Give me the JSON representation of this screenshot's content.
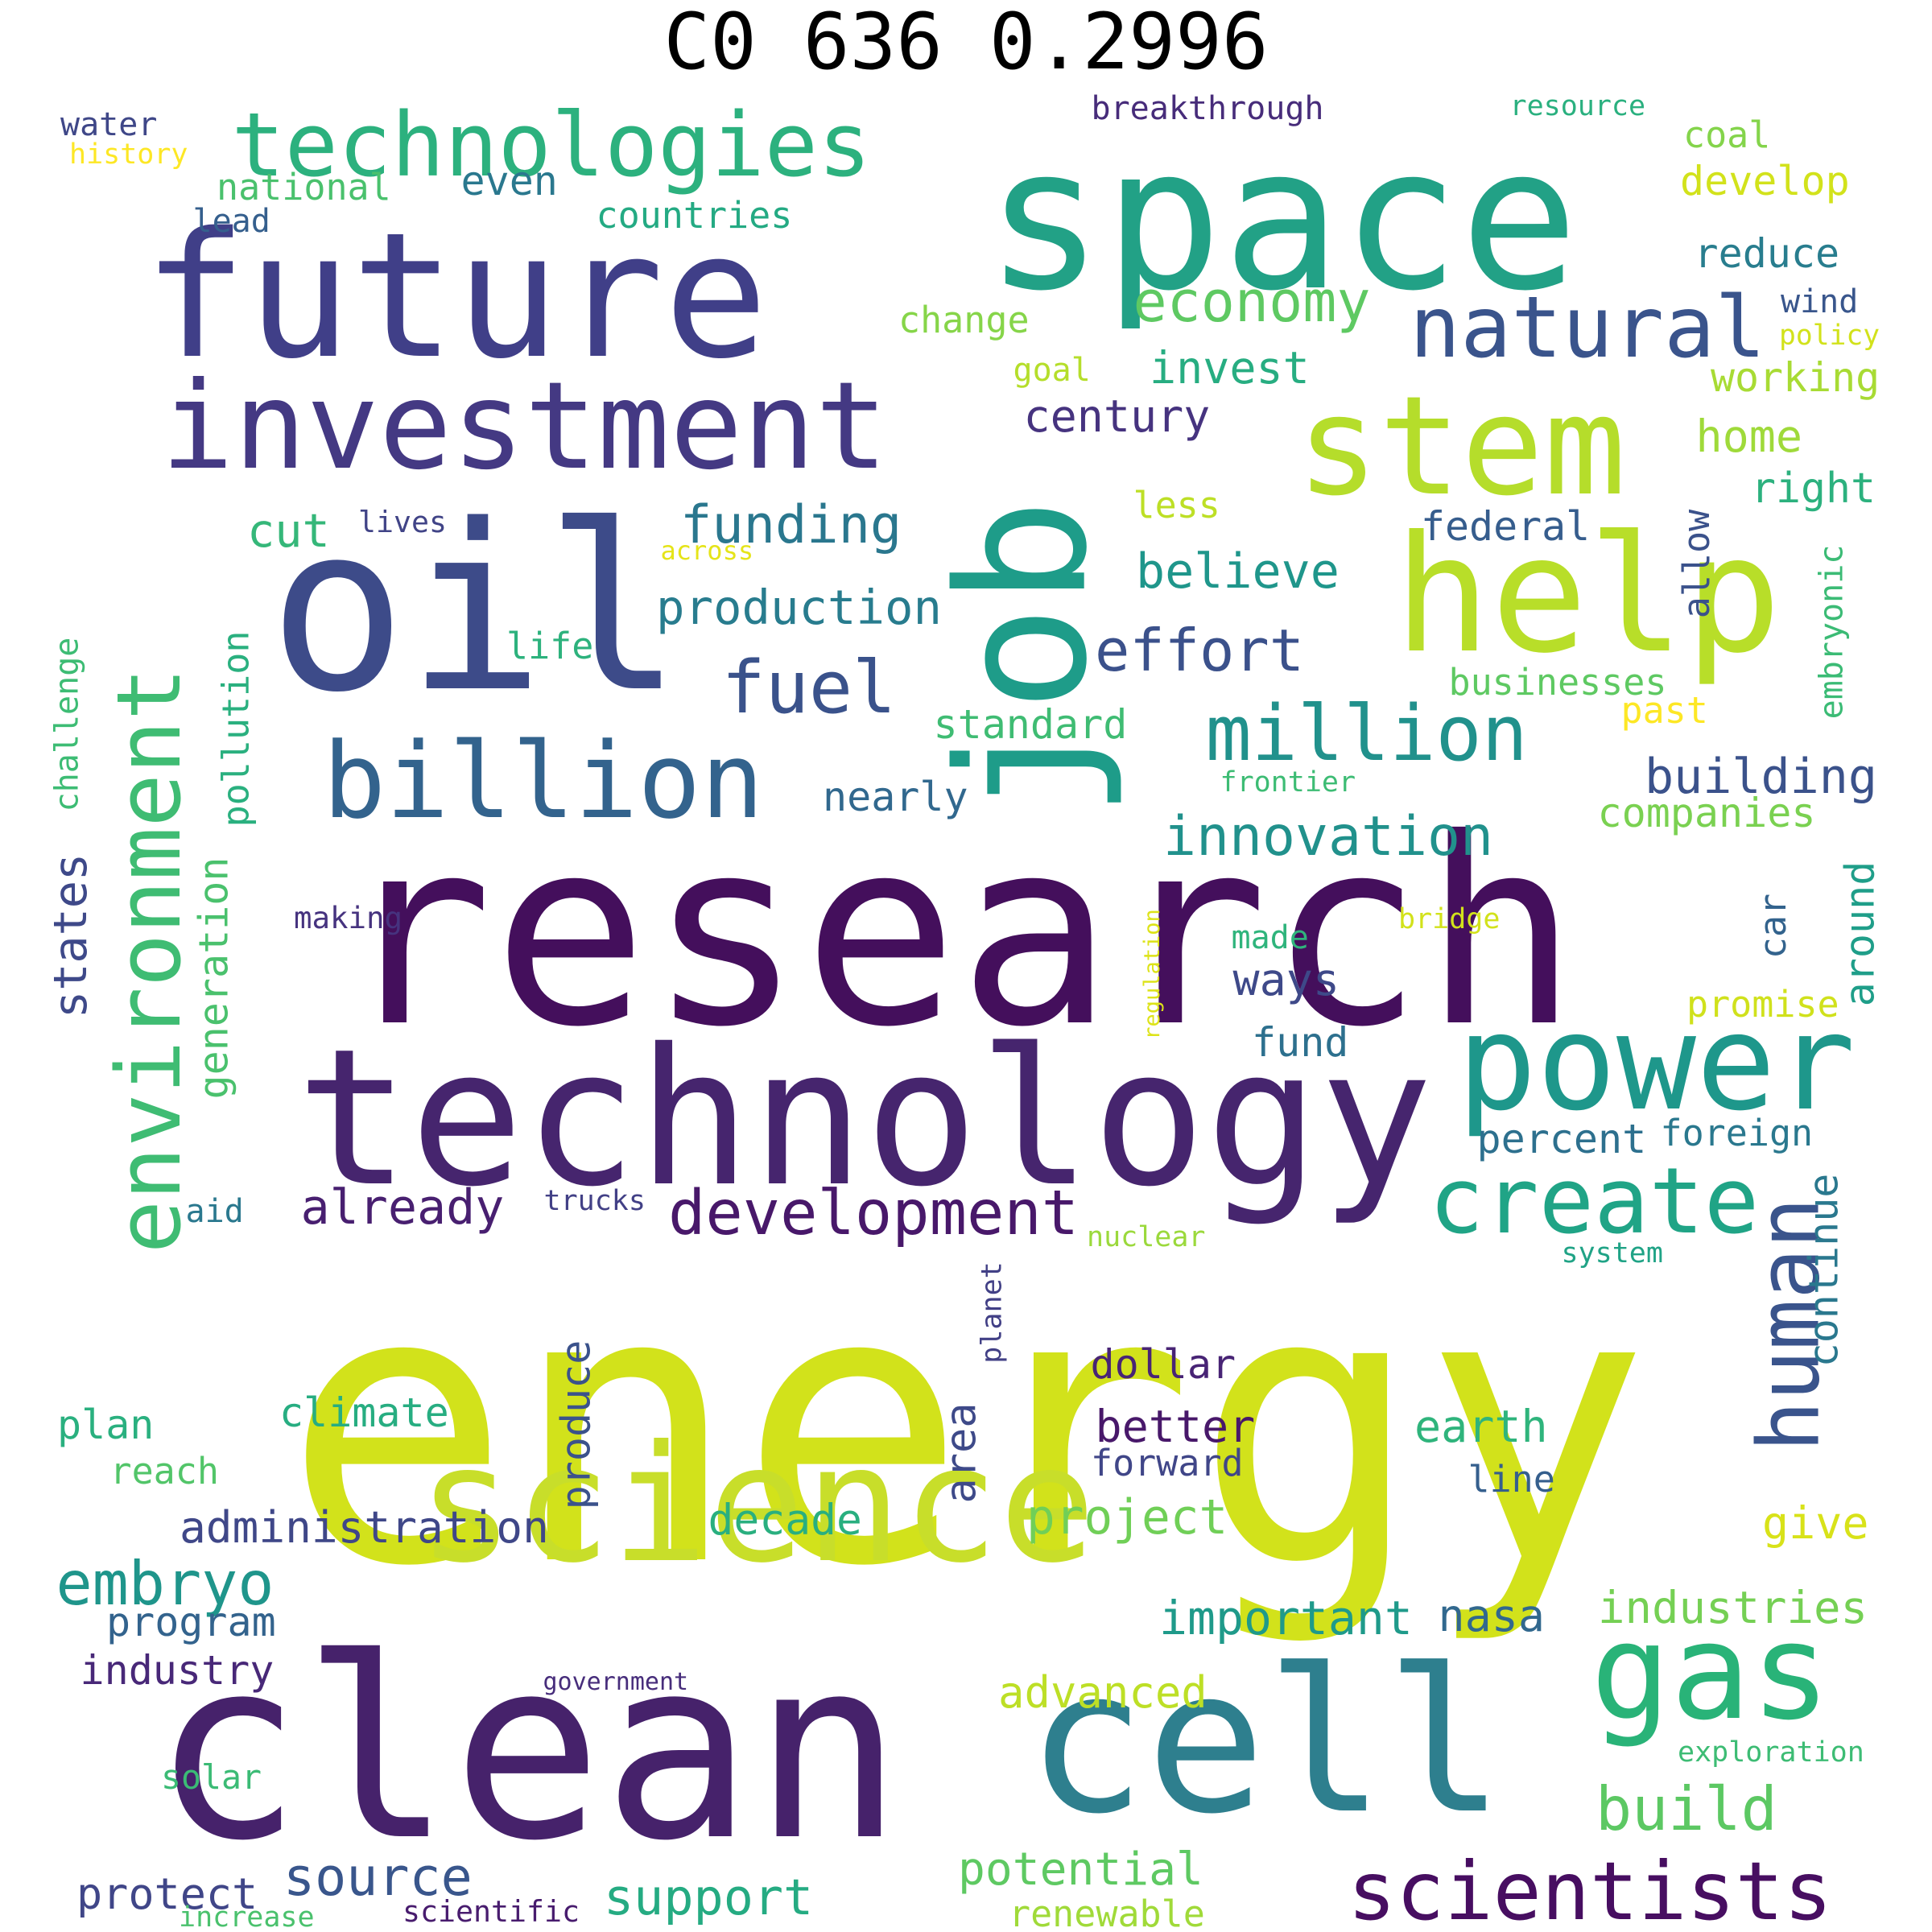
{
  "title": "C0 636 0.2996",
  "words": [
    {
      "text": "energy",
      "color": "#d2e21b"
    },
    {
      "text": "research",
      "color": "#440f5c"
    },
    {
      "text": "clean",
      "color": "#46226b"
    },
    {
      "text": "space",
      "color": "#22a186"
    },
    {
      "text": "future",
      "color": "#403f88"
    },
    {
      "text": "oil",
      "color": "#3d4b89"
    },
    {
      "text": "technology",
      "color": "#46256e"
    },
    {
      "text": "job",
      "color": "#1e9c89"
    },
    {
      "text": "cell",
      "color": "#2e7f8e"
    },
    {
      "text": "investment",
      "color": "#443983"
    },
    {
      "text": "science",
      "color": "#c8de2a"
    },
    {
      "text": "stem",
      "color": "#b5dd2b"
    },
    {
      "text": "help",
      "color": "#b8de29"
    },
    {
      "text": "billion",
      "color": "#33638d"
    },
    {
      "text": "environment",
      "color": "#3fbc73"
    },
    {
      "text": "gas",
      "color": "#29b378"
    },
    {
      "text": "power",
      "color": "#1e978b"
    },
    {
      "text": "technologies",
      "color": "#2cb17e"
    },
    {
      "text": "natural",
      "color": "#3a548c"
    },
    {
      "text": "fuel",
      "color": "#3a528b"
    },
    {
      "text": "million",
      "color": "#21918c"
    },
    {
      "text": "create",
      "color": "#20a486"
    },
    {
      "text": "scientists",
      "color": "#470e61"
    },
    {
      "text": "human",
      "color": "#3a548c"
    },
    {
      "text": "development",
      "color": "#48186a"
    },
    {
      "text": "innovation",
      "color": "#21918c"
    },
    {
      "text": "economy",
      "color": "#5ec962"
    },
    {
      "text": "funding",
      "color": "#2a778e"
    },
    {
      "text": "production",
      "color": "#287c8e"
    },
    {
      "text": "effort",
      "color": "#3b518b"
    },
    {
      "text": "already",
      "color": "#481f70"
    },
    {
      "text": "administration",
      "color": "#3f4788"
    },
    {
      "text": "embryo",
      "color": "#1f958b"
    },
    {
      "text": "source",
      "color": "#39568c"
    },
    {
      "text": "support",
      "color": "#25ab82"
    },
    {
      "text": "potential",
      "color": "#5ec962"
    },
    {
      "text": "renewable",
      "color": "#a0da39"
    },
    {
      "text": "build",
      "color": "#5cc863"
    },
    {
      "text": "industries",
      "color": "#75d054"
    },
    {
      "text": "nasa",
      "color": "#31688e"
    },
    {
      "text": "important",
      "color": "#1f9a8a"
    },
    {
      "text": "advanced",
      "color": "#bddf26"
    },
    {
      "text": "project",
      "color": "#70cf57"
    },
    {
      "text": "decade",
      "color": "#29af7f"
    },
    {
      "text": "program",
      "color": "#33638d"
    },
    {
      "text": "industry",
      "color": "#482878"
    },
    {
      "text": "solar",
      "color": "#3bbb75"
    },
    {
      "text": "protect",
      "color": "#404688"
    },
    {
      "text": "government",
      "color": "#472d7b"
    },
    {
      "text": "climate",
      "color": "#27ad81"
    },
    {
      "text": "plan",
      "color": "#2ab07f"
    },
    {
      "text": "reach",
      "color": "#52c569"
    },
    {
      "text": "states",
      "color": "#3e4989"
    },
    {
      "text": "challenge",
      "color": "#3dbc74"
    },
    {
      "text": "pollution",
      "color": "#2ab07f"
    },
    {
      "text": "generation",
      "color": "#4ac16d"
    },
    {
      "text": "cut",
      "color": "#35b779"
    },
    {
      "text": "life",
      "color": "#2db27d"
    },
    {
      "text": "lives",
      "color": "#414487"
    },
    {
      "text": "across",
      "color": "#e5e419"
    },
    {
      "text": "making",
      "color": "#46337f"
    },
    {
      "text": "trucks",
      "color": "#424086"
    },
    {
      "text": "aid",
      "color": "#2a788e"
    },
    {
      "text": "produce",
      "color": "#3b528b"
    },
    {
      "text": "regulation",
      "color": "#dde318"
    },
    {
      "text": "planet",
      "color": "#424086"
    },
    {
      "text": "nuclear",
      "color": "#9bd93c"
    },
    {
      "text": "dollar",
      "color": "#482475"
    },
    {
      "text": "better",
      "color": "#48186a"
    },
    {
      "text": "forward",
      "color": "#404688"
    },
    {
      "text": "area",
      "color": "#3e4a89"
    },
    {
      "text": "earth",
      "color": "#2fb47c"
    },
    {
      "text": "line",
      "color": "#355f8d"
    },
    {
      "text": "give",
      "color": "#d8e219"
    },
    {
      "text": "car",
      "color": "#33638d"
    },
    {
      "text": "ways",
      "color": "#3e4989"
    },
    {
      "text": "made",
      "color": "#2fb47c"
    },
    {
      "text": "fund",
      "color": "#2d708e"
    },
    {
      "text": "percent",
      "color": "#2d708e"
    },
    {
      "text": "foreign",
      "color": "#2a788e"
    },
    {
      "text": "continue",
      "color": "#2a788e"
    },
    {
      "text": "system",
      "color": "#20a386"
    },
    {
      "text": "promise",
      "color": "#d0e11c"
    },
    {
      "text": "around",
      "color": "#1f9e89"
    },
    {
      "text": "bridge",
      "color": "#d2e21b"
    },
    {
      "text": "companies",
      "color": "#7ad151"
    },
    {
      "text": "building",
      "color": "#3b528b"
    },
    {
      "text": "frontier",
      "color": "#3dbc74"
    },
    {
      "text": "past",
      "color": "#fde725"
    },
    {
      "text": "businesses",
      "color": "#5ec962"
    },
    {
      "text": "embryonic",
      "color": "#3bbb75"
    },
    {
      "text": "allow",
      "color": "#3b528b"
    },
    {
      "text": "standard",
      "color": "#3fbc73"
    },
    {
      "text": "nearly",
      "color": "#31688e"
    },
    {
      "text": "believe",
      "color": "#1f968b"
    },
    {
      "text": "federal",
      "color": "#365d8d"
    },
    {
      "text": "less",
      "color": "#bddf26"
    },
    {
      "text": "right",
      "color": "#2cb17e"
    },
    {
      "text": "home",
      "color": "#9fda3a"
    },
    {
      "text": "century",
      "color": "#46337f"
    },
    {
      "text": "invest",
      "color": "#27ad81"
    },
    {
      "text": "working",
      "color": "#a8db34"
    },
    {
      "text": "goal",
      "color": "#b5de2b"
    },
    {
      "text": "change",
      "color": "#86d549"
    },
    {
      "text": "policy",
      "color": "#d2e21b"
    },
    {
      "text": "wind",
      "color": "#39568c"
    },
    {
      "text": "reduce",
      "color": "#287d8e"
    },
    {
      "text": "develop",
      "color": "#d2e21b"
    },
    {
      "text": "coal",
      "color": "#84d44b"
    },
    {
      "text": "even",
      "color": "#2a788e"
    },
    {
      "text": "countries",
      "color": "#24aa83"
    },
    {
      "text": "national",
      "color": "#4ac16d"
    },
    {
      "text": "lead",
      "color": "#355f8d"
    },
    {
      "text": "water",
      "color": "#3f4788"
    },
    {
      "text": "history",
      "color": "#fde725"
    },
    {
      "text": "breakthrough",
      "color": "#472c7a"
    },
    {
      "text": "resource",
      "color": "#2ab07f"
    },
    {
      "text": "exploration",
      "color": "#3dbc74"
    },
    {
      "text": "increase",
      "color": "#4ac16d"
    },
    {
      "text": "scientific",
      "color": "#481c6e"
    }
  ]
}
